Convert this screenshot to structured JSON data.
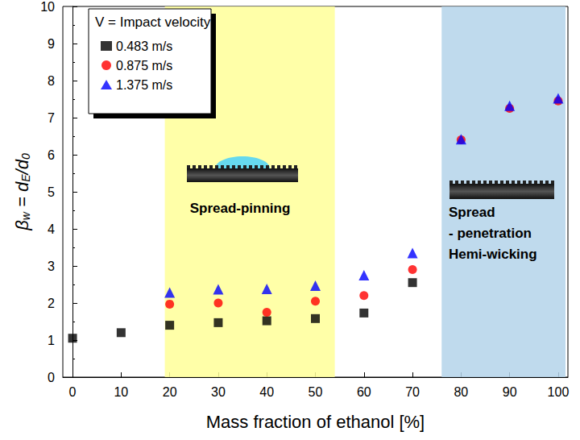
{
  "chart_data": {
    "type": "scatter",
    "xlabel": "Mass fraction of ethanol [%]",
    "ylabel": [
      {
        "text": "β"
      },
      {
        "text": "w",
        "sub": true
      },
      {
        "text": " = "
      },
      {
        "text": "d"
      },
      {
        "text": "E",
        "sub": true
      },
      {
        "text": "/"
      },
      {
        "text": "d"
      },
      {
        "text": "0",
        "sub": true
      }
    ],
    "legend_title": "V = Impact velocity",
    "x": [
      0,
      10,
      20,
      30,
      40,
      50,
      60,
      70,
      80,
      90,
      100
    ],
    "series": [
      {
        "name": "0.483 m/s",
        "color": "#000000",
        "marker": "square",
        "values": [
          1.05,
          1.2,
          1.4,
          1.47,
          1.52,
          1.58,
          1.73,
          2.55,
          null,
          null,
          null
        ]
      },
      {
        "name": "0.875 m/s",
        "color": "#ff0000",
        "marker": "circle",
        "values": [
          null,
          null,
          1.97,
          2.0,
          1.75,
          2.05,
          2.2,
          2.9,
          6.4,
          7.25,
          7.45
        ]
      },
      {
        "name": "1.375 m/s",
        "color": "#0000ff",
        "marker": "triangle",
        "values": [
          null,
          null,
          2.28,
          2.37,
          2.38,
          2.47,
          2.75,
          3.35,
          6.42,
          7.32,
          7.52
        ]
      }
    ],
    "regions": [
      {
        "range": [
          19,
          54
        ],
        "color": "#ffff99",
        "labels": [
          "Spread-pinning"
        ]
      },
      {
        "range": [
          76,
          101.5
        ],
        "color": "#b4d4ea",
        "labels": [
          "Spread",
          "- penetration",
          "Hemi-wicking"
        ]
      }
    ],
    "xlim": [
      -2,
      102
    ],
    "xticks": [
      0,
      10,
      20,
      30,
      40,
      50,
      60,
      70,
      80,
      90,
      100
    ],
    "ylim": [
      0,
      10
    ],
    "yticks": [
      0,
      1,
      2,
      3,
      4,
      5,
      6,
      7,
      8,
      9,
      10
    ],
    "grid": false,
    "legend": "upper left"
  }
}
